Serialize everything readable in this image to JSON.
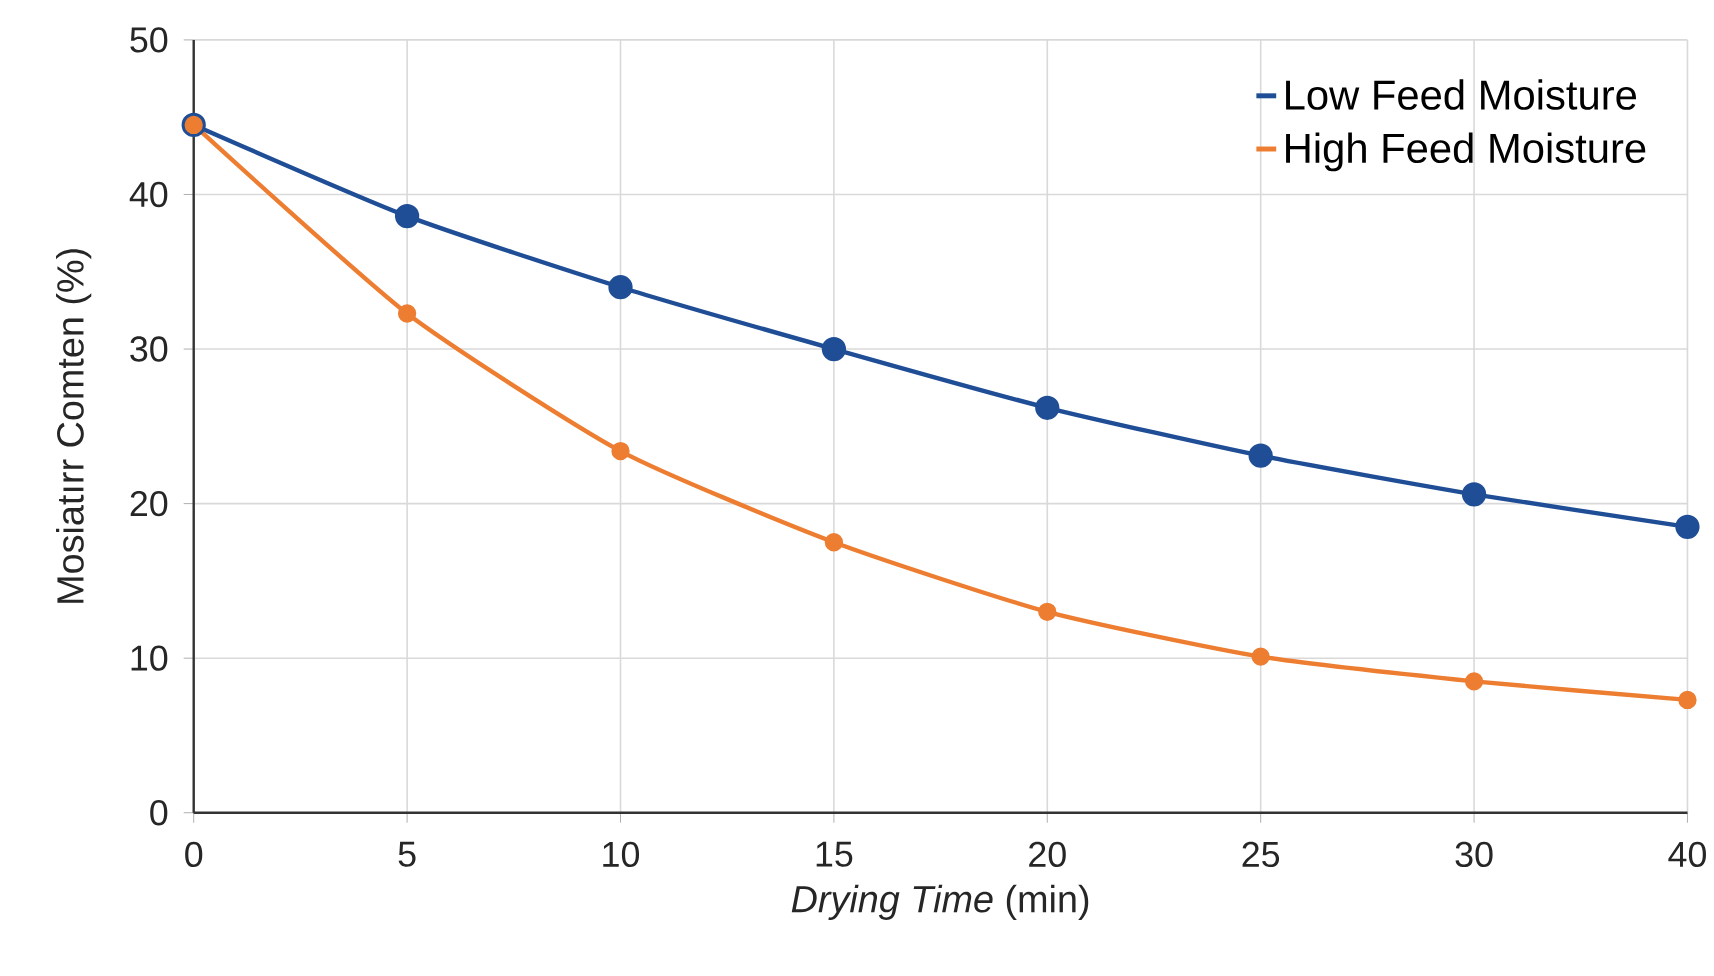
{
  "chart_data": {
    "type": "line",
    "xlabel": "*Drying Time* (min)",
    "ylabel": "Mosiatırr Comten (%)",
    "categories": [
      "0",
      "5",
      "10",
      "15",
      "20",
      "25",
      "30",
      "40"
    ],
    "series": [
      {
        "name": "Low Feed Moisture",
        "color": "#1f4e96",
        "values": [
          44.5,
          38.6,
          34.0,
          30.0,
          26.2,
          23.1,
          20.6,
          18.5
        ]
      },
      {
        "name": "High Feed Moisture",
        "color": "#ed7d31",
        "values": [
          44.5,
          32.3,
          23.4,
          17.5,
          13.0,
          10.1,
          8.5,
          7.3
        ]
      }
    ],
    "ylim": [
      0,
      50
    ],
    "yticks": [
      0,
      10,
      20,
      30,
      40,
      50
    ],
    "grid": true,
    "legend": "top right",
    "marker": "circle",
    "line_style": "solid"
  }
}
